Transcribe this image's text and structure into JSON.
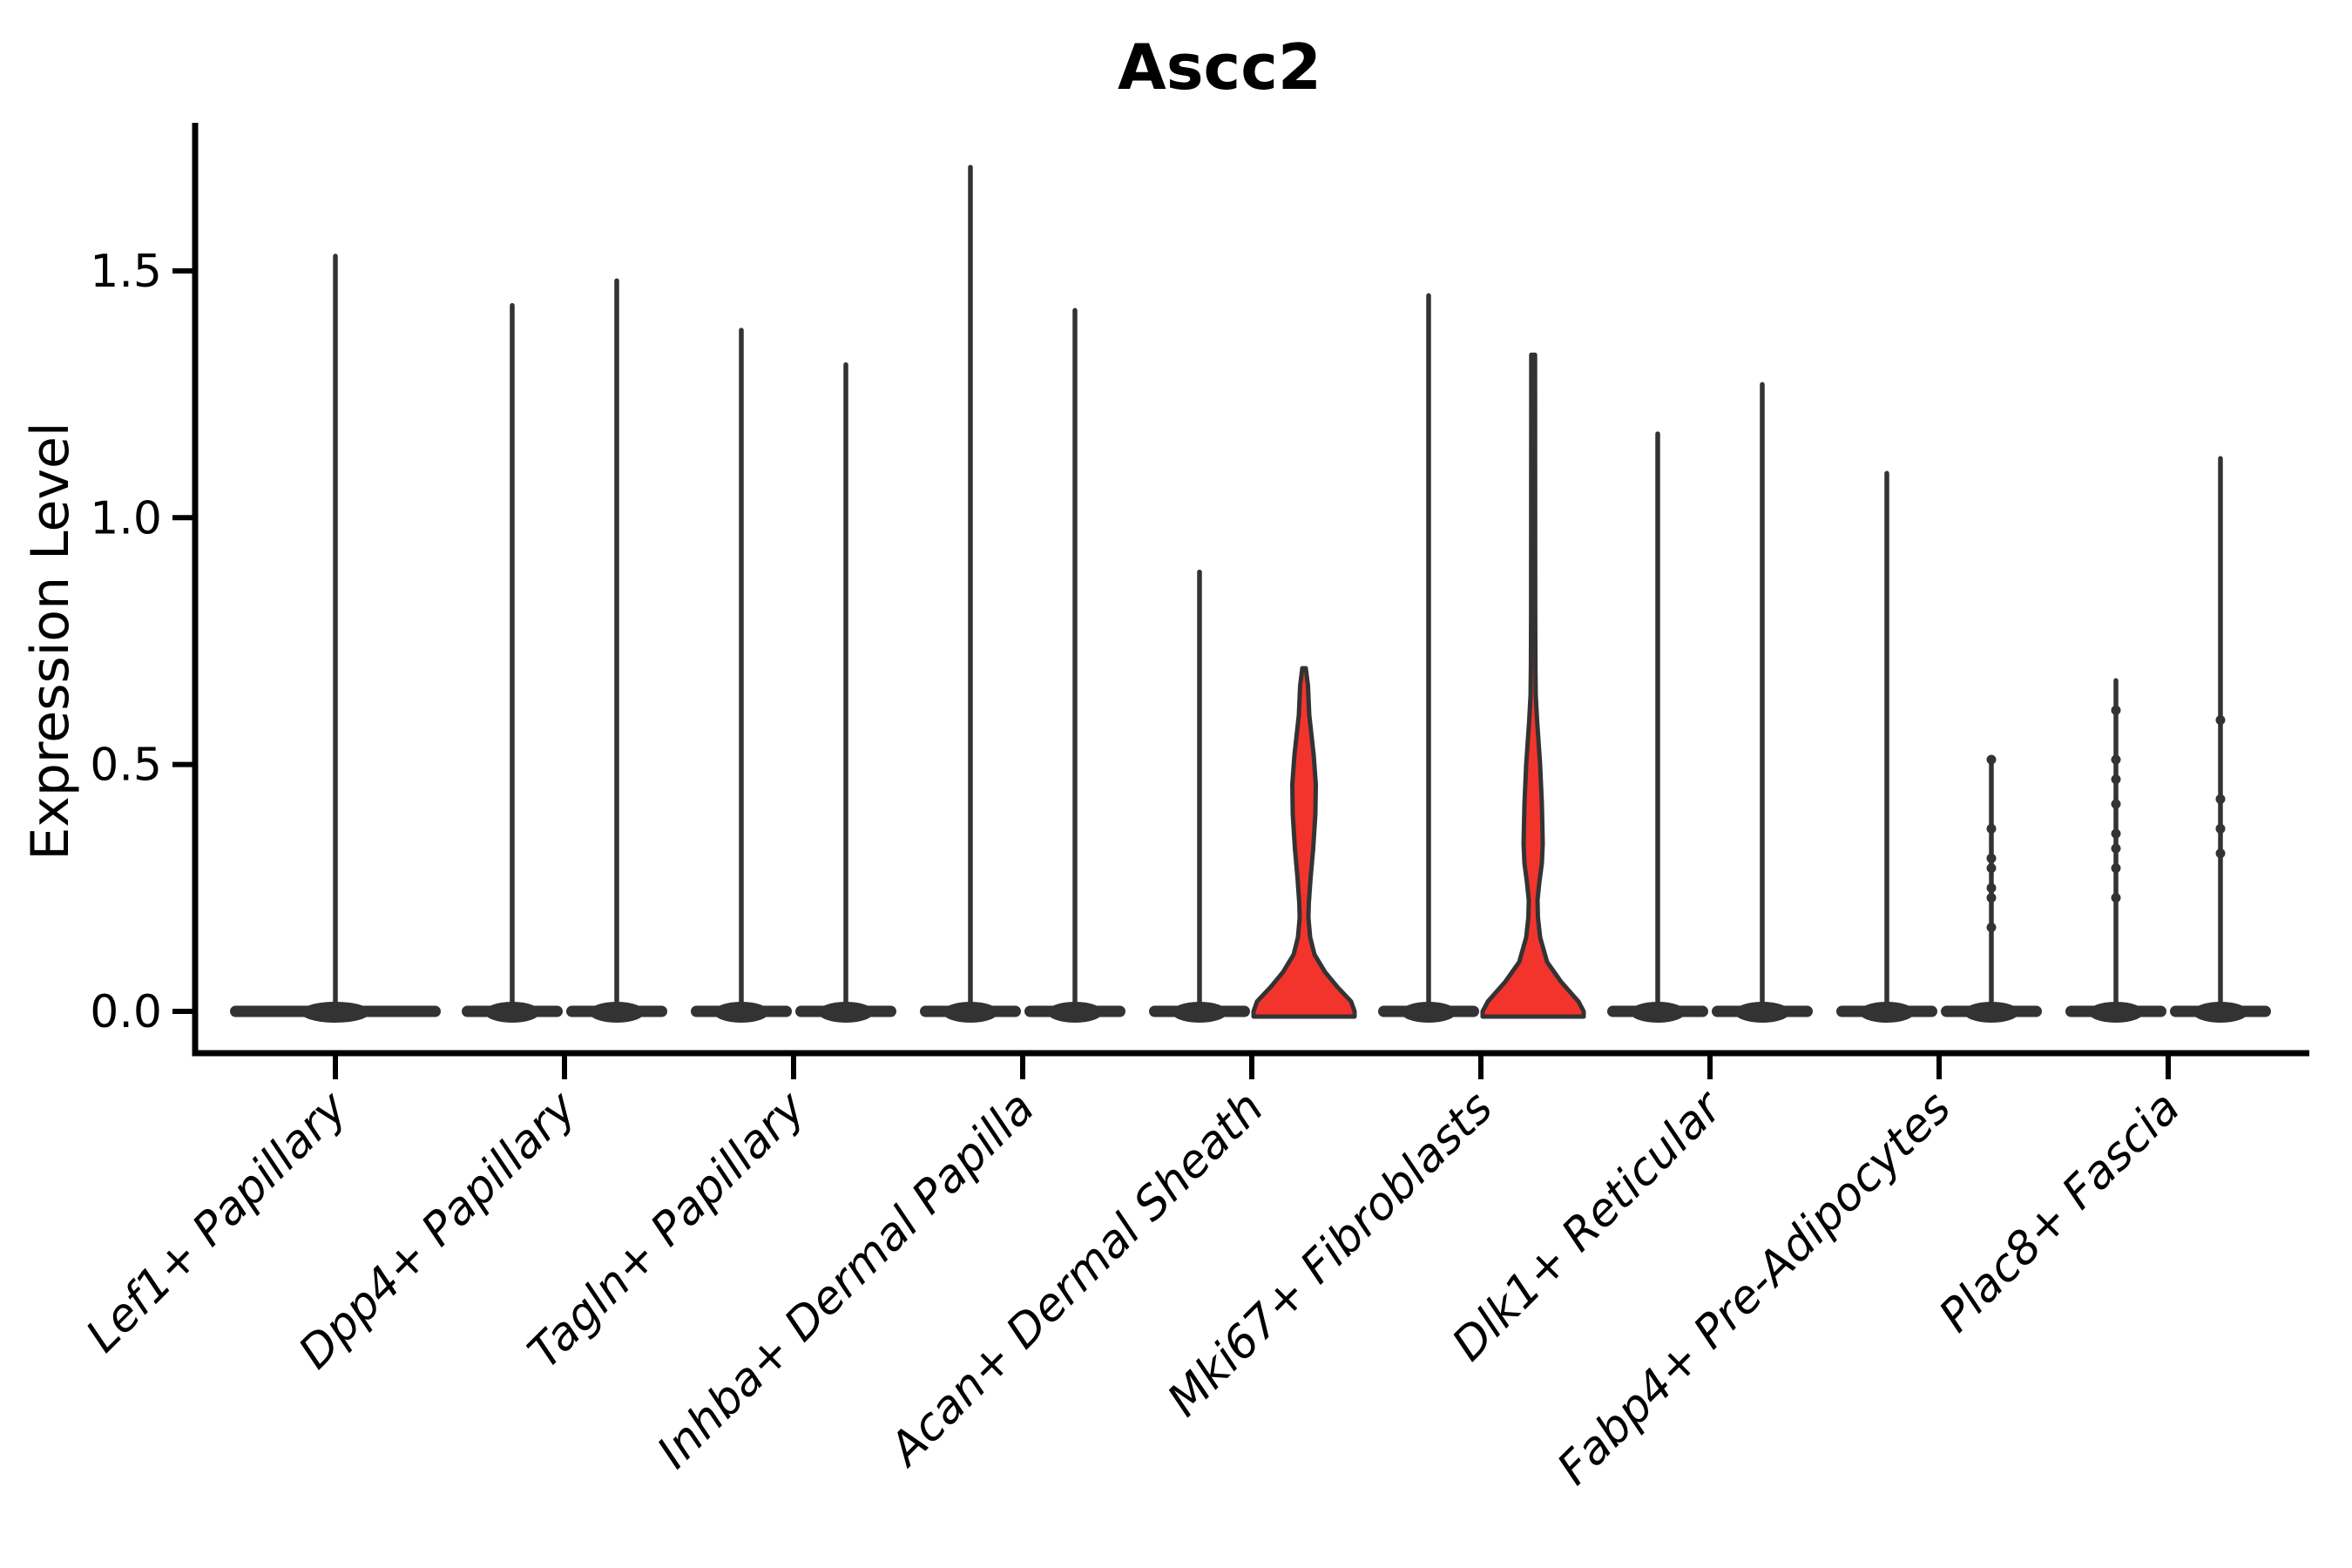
{
  "title": "Ascc2",
  "y_axis": {
    "label": "Expression Level",
    "tick_labels": [
      "0.0",
      "0.5",
      "1.0",
      "1.5"
    ],
    "tick_values": [
      0.0,
      0.5,
      1.0,
      1.5
    ]
  },
  "colors": {
    "ink": "#333333",
    "spine": "#000000",
    "highlight_fill": "#f3342d",
    "text": "#000000",
    "background": "#ffffff"
  },
  "chart_data": {
    "type": "violin",
    "title": "Ascc2",
    "xlabel": "",
    "ylabel": "Expression Level",
    "ylim": [
      -0.09,
      1.8
    ],
    "yticks": [
      0.0,
      0.5,
      1.0,
      1.5
    ],
    "grid": false,
    "legend": "none",
    "categories": [
      "Lef1+ Papillary",
      "Dpp4+ Papillary",
      "Tagln+ Papillary",
      "Inhba+ Dermal Papilla",
      "Acan+ Dermal Sheath",
      "Mki67+ Fibroblasts",
      "Dlk1+ Reticular",
      "Fabp4+ Pre-Adipocytes",
      "Plac8+ Fascia"
    ],
    "layout_note": "Two narrow dodged violins per category at offsets -60/+60 px; Lef1+ Papillary has one wide centered violin. Almost all mass at 0 (flat pancake base) with a thin spike to the max expression value.",
    "violins": [
      {
        "category": "Lef1+ Papillary",
        "side": "center",
        "max": 1.53,
        "fill": "none",
        "dots": []
      },
      {
        "category": "Dpp4+ Papillary",
        "side": "left",
        "max": 1.43,
        "fill": "none",
        "dots": []
      },
      {
        "category": "Dpp4+ Papillary",
        "side": "right",
        "max": 1.48,
        "fill": "none",
        "dots": []
      },
      {
        "category": "Tagln+ Papillary",
        "side": "left",
        "max": 1.38,
        "fill": "none",
        "dots": []
      },
      {
        "category": "Tagln+ Papillary",
        "side": "right",
        "max": 1.31,
        "fill": "none",
        "dots": []
      },
      {
        "category": "Inhba+ Dermal Papilla",
        "side": "left",
        "max": 1.71,
        "fill": "none",
        "dots": []
      },
      {
        "category": "Inhba+ Dermal Papilla",
        "side": "right",
        "max": 1.42,
        "fill": "none",
        "dots": []
      },
      {
        "category": "Acan+ Dermal Sheath",
        "side": "left",
        "max": 0.89,
        "fill": "none",
        "dots": []
      },
      {
        "category": "Acan+ Dermal Sheath",
        "side": "right",
        "max": 0.7,
        "fill": "#f3342d",
        "profile": [
          [
            0.695,
            2
          ],
          [
            0.66,
            4.5
          ],
          [
            0.6,
            6
          ],
          [
            0.52,
            11
          ],
          [
            0.46,
            13.5
          ],
          [
            0.4,
            13
          ],
          [
            0.33,
            10.5
          ],
          [
            0.27,
            7.5
          ],
          [
            0.22,
            5.5
          ],
          [
            0.19,
            5
          ],
          [
            0.15,
            7
          ],
          [
            0.115,
            12
          ],
          [
            0.08,
            24
          ],
          [
            0.05,
            38
          ],
          [
            0.02,
            54
          ],
          [
            0.0,
            58
          ]
        ],
        "dots": []
      },
      {
        "category": "Mki67+ Fibroblasts",
        "side": "left",
        "max": 1.45,
        "fill": "none",
        "dots": []
      },
      {
        "category": "Mki67+ Fibroblasts",
        "side": "right",
        "max": 1.33,
        "fill": "#f3342d",
        "profile": [
          [
            1.33,
            2.2
          ],
          [
            1.0,
            2.3
          ],
          [
            0.8,
            2.4
          ],
          [
            0.7,
            2.6
          ],
          [
            0.64,
            3
          ],
          [
            0.59,
            4.5
          ],
          [
            0.5,
            8
          ],
          [
            0.42,
            10
          ],
          [
            0.34,
            11
          ],
          [
            0.3,
            10
          ],
          [
            0.26,
            7
          ],
          [
            0.225,
            5
          ],
          [
            0.19,
            5.5
          ],
          [
            0.15,
            8
          ],
          [
            0.1,
            16
          ],
          [
            0.06,
            32
          ],
          [
            0.02,
            52
          ],
          [
            0.0,
            58
          ]
        ],
        "dots": []
      },
      {
        "category": "Dlk1+ Reticular",
        "side": "left",
        "max": 1.17,
        "fill": "none",
        "dots": []
      },
      {
        "category": "Dlk1+ Reticular",
        "side": "right",
        "max": 1.27,
        "fill": "none",
        "dots": []
      },
      {
        "category": "Fabp4+ Pre-Adipocytes",
        "side": "left",
        "max": 1.09,
        "fill": "none",
        "dots": []
      },
      {
        "category": "Fabp4+ Pre-Adipocytes",
        "side": "right",
        "max": 0.51,
        "fill": "none",
        "dots": [
          0.51,
          0.37,
          0.31,
          0.29,
          0.25,
          0.23,
          0.17
        ]
      },
      {
        "category": "Plac8+ Fascia",
        "side": "left",
        "max": 0.67,
        "fill": "none",
        "dots": [
          0.61,
          0.51,
          0.47,
          0.42,
          0.36,
          0.33,
          0.29,
          0.23
        ]
      },
      {
        "category": "Plac8+ Fascia",
        "side": "right",
        "max": 1.12,
        "fill": "none",
        "dots": [
          0.59,
          0.43,
          0.37,
          0.32
        ]
      }
    ]
  }
}
